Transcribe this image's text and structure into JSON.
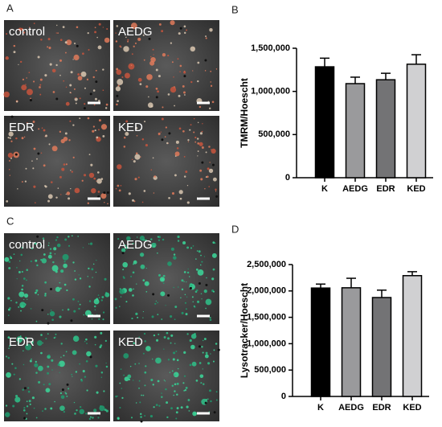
{
  "panel_labels": [
    "A",
    "B",
    "C",
    "D"
  ],
  "image_labels": [
    [
      "control",
      "AEDG",
      "EDR",
      "KED"
    ],
    [
      "control",
      "AEDG",
      "EDR",
      "KED"
    ]
  ],
  "chart_data": [
    {
      "type": "bar",
      "y_label": "TMRM/Hoescht",
      "categories": [
        "K",
        "AEDG",
        "EDR",
        "KED"
      ],
      "values": [
        1285000,
        1090000,
        1135000,
        1315000
      ],
      "errors": [
        100000,
        75000,
        75000,
        110000
      ],
      "colors": [
        "#000000",
        "#9a9a9c",
        "#737375",
        "#d0d0d2"
      ],
      "ylim": [
        0,
        1500000
      ],
      "yticks": [
        0,
        {
          "value": 500000,
          "label": "500,000"
        },
        {
          "value": 1000000,
          "label": "1,000,000"
        },
        {
          "value": 1500000,
          "label": "1,500,000"
        }
      ]
    },
    {
      "type": "bar",
      "y_label": "Lysotracker/Hoescht",
      "categories": [
        "K",
        "AEDG",
        "EDR",
        "KED"
      ],
      "values": [
        2055000,
        2060000,
        1875000,
        2290000
      ],
      "errors": [
        75000,
        180000,
        140000,
        75000
      ],
      "colors": [
        "#000000",
        "#9a9a9c",
        "#737375",
        "#d0d0d2"
      ],
      "ylim": [
        0,
        2500000
      ],
      "yticks": [
        0,
        {
          "value": 500000,
          "label": "500,000"
        },
        {
          "value": 1000000,
          "label": "1,000,000"
        },
        {
          "value": 1500000,
          "label": "1,500,000"
        },
        {
          "value": 2000000,
          "label": "2,000,000"
        },
        {
          "value": 2500000,
          "label": "2,500,000"
        }
      ]
    }
  ]
}
